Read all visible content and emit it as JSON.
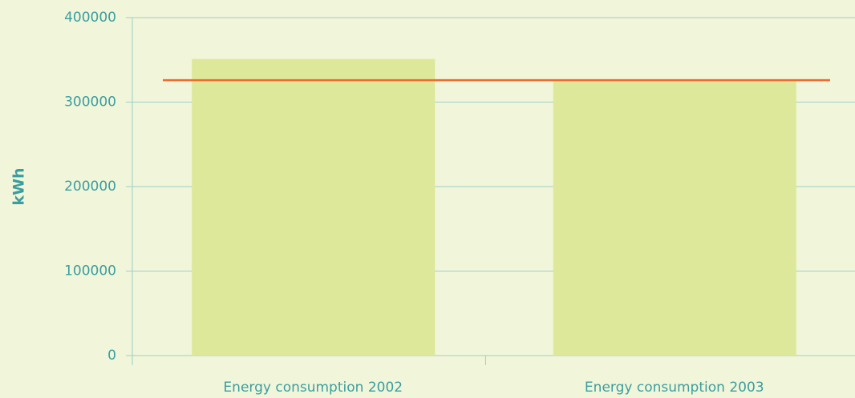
{
  "chart_data": {
    "type": "bar",
    "y_label": "kWh",
    "categories": [
      "Energy consumption 2002",
      "Energy consumption 2003"
    ],
    "values": [
      351000,
      326000
    ],
    "color": "#dde89a",
    "reference_line": {
      "value": 326000,
      "color": "#ee6a2c"
    },
    "ylim": [
      0,
      400000
    ],
    "yticks": [
      0,
      100000,
      200000,
      300000,
      400000
    ],
    "grid": true
  }
}
